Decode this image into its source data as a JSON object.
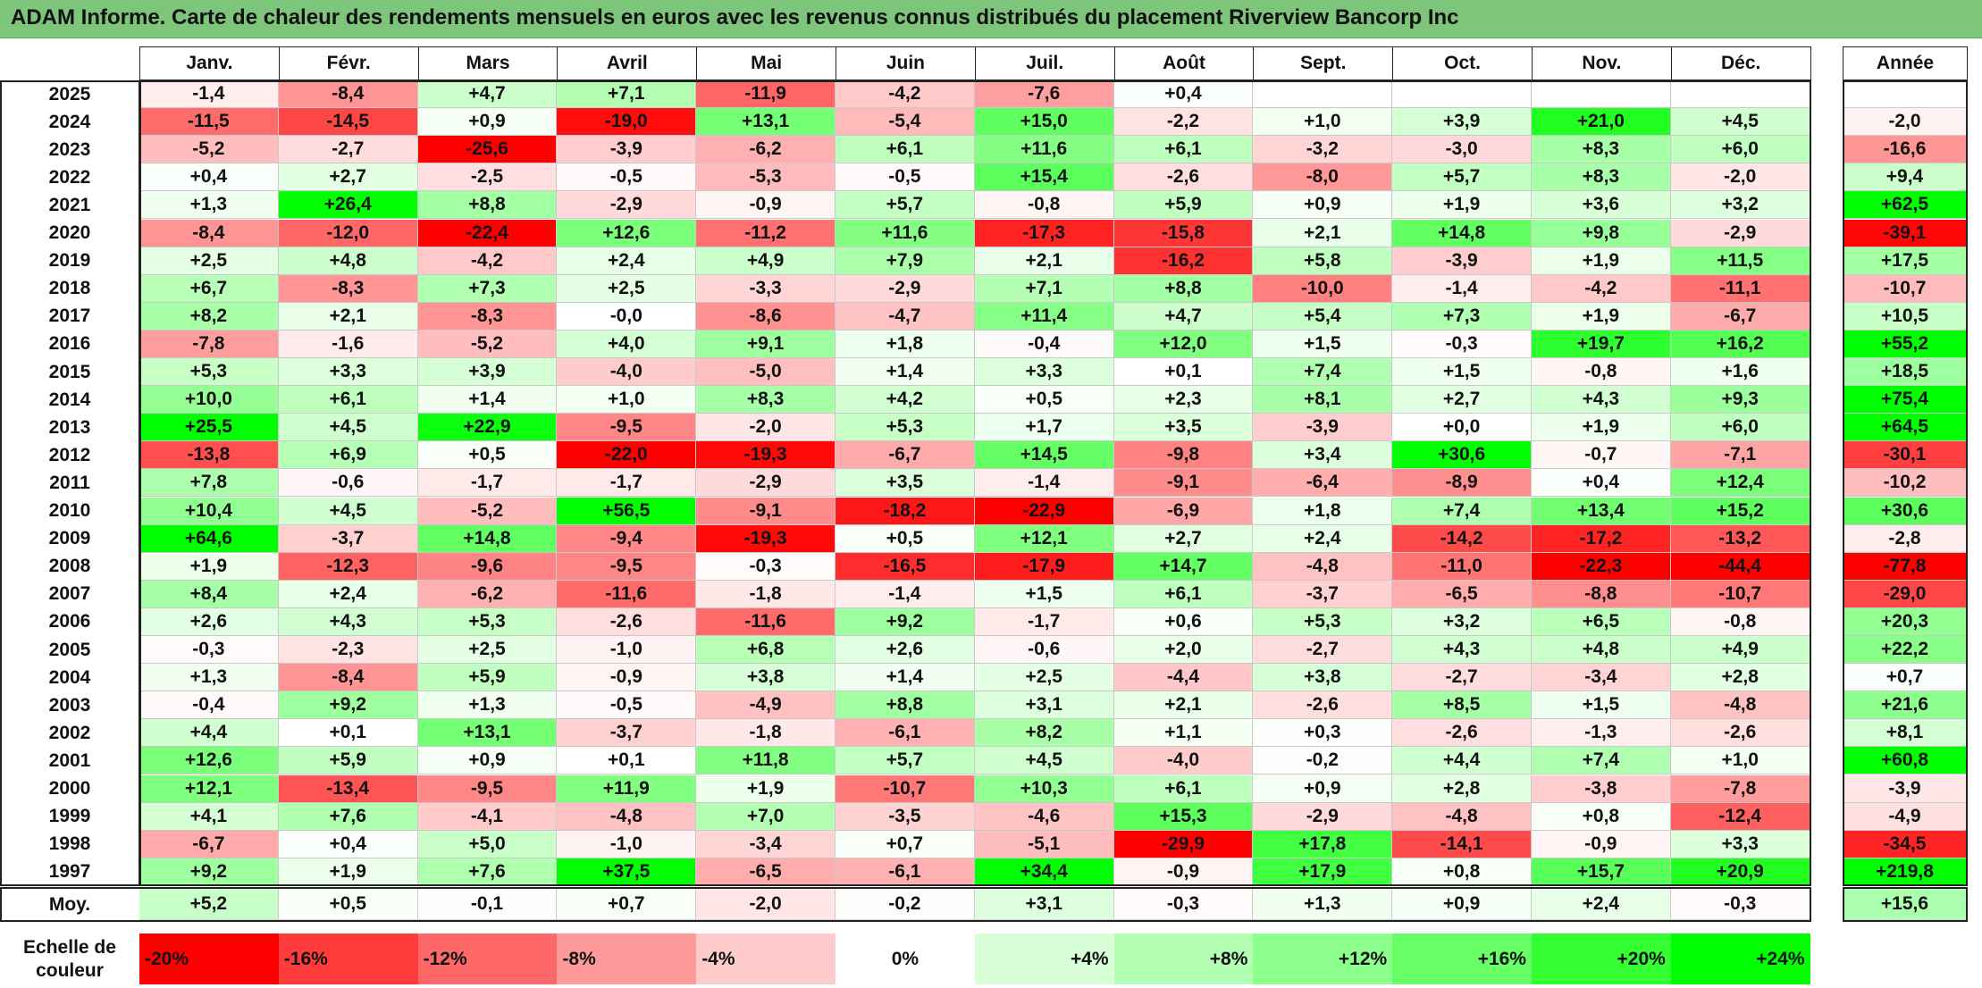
{
  "title": "ADAM Informe. Carte de chaleur des rendements mensuels en euros avec les revenus connus distribués du placement Riverview Bancorp Inc",
  "chart_data": {
    "type": "heatmap",
    "months": [
      "Janv.",
      "Févr.",
      "Mars",
      "Avril",
      "Mai",
      "Juin",
      "Juil.",
      "Août",
      "Sept.",
      "Oct.",
      "Nov.",
      "Déc."
    ],
    "annual_header": "Année",
    "rows": [
      {
        "year": "2025",
        "m": [
          "-1,4",
          "-8,4",
          "+4,7",
          "+7,1",
          "-11,9",
          "-4,2",
          "-7,6",
          "+0,4",
          "",
          "",
          "",
          ""
        ],
        "annual": ""
      },
      {
        "year": "2024",
        "m": [
          "-11,5",
          "-14,5",
          "+0,9",
          "-19,0",
          "+13,1",
          "-5,4",
          "+15,0",
          "-2,2",
          "+1,0",
          "+3,9",
          "+21,0",
          "+4,5"
        ],
        "annual": "-2,0"
      },
      {
        "year": "2023",
        "m": [
          "-5,2",
          "-2,7",
          "-25,6",
          "-3,9",
          "-6,2",
          "+6,1",
          "+11,6",
          "+6,1",
          "-3,2",
          "-3,0",
          "+8,3",
          "+6,0"
        ],
        "annual": "-16,6"
      },
      {
        "year": "2022",
        "m": [
          "+0,4",
          "+2,7",
          "-2,5",
          "-0,5",
          "-5,3",
          "-0,5",
          "+15,4",
          "-2,6",
          "-8,0",
          "+5,7",
          "+8,3",
          "-2,0"
        ],
        "annual": "+9,4"
      },
      {
        "year": "2021",
        "m": [
          "+1,3",
          "+26,4",
          "+8,8",
          "-2,9",
          "-0,9",
          "+5,7",
          "-0,8",
          "+5,9",
          "+0,9",
          "+1,9",
          "+3,6",
          "+3,2"
        ],
        "annual": "+62,5"
      },
      {
        "year": "2020",
        "m": [
          "-8,4",
          "-12,0",
          "-22,4",
          "+12,6",
          "-11,2",
          "+11,6",
          "-17,3",
          "-15,8",
          "+2,1",
          "+14,8",
          "+9,8",
          "-2,9"
        ],
        "annual": "-39,1"
      },
      {
        "year": "2019",
        "m": [
          "+2,5",
          "+4,8",
          "-4,2",
          "+2,4",
          "+4,9",
          "+7,9",
          "+2,1",
          "-16,2",
          "+5,8",
          "-3,9",
          "+1,9",
          "+11,5"
        ],
        "annual": "+17,5"
      },
      {
        "year": "2018",
        "m": [
          "+6,7",
          "-8,3",
          "+7,3",
          "+2,5",
          "-3,3",
          "-2,9",
          "+7,1",
          "+8,8",
          "-10,0",
          "-1,4",
          "-4,2",
          "-11,1"
        ],
        "annual": "-10,7"
      },
      {
        "year": "2017",
        "m": [
          "+8,2",
          "+2,1",
          "-8,3",
          "-0,0",
          "-8,6",
          "-4,7",
          "+11,4",
          "+4,7",
          "+5,4",
          "+7,3",
          "+1,9",
          "-6,7"
        ],
        "annual": "+10,5"
      },
      {
        "year": "2016",
        "m": [
          "-7,8",
          "-1,6",
          "-5,2",
          "+4,0",
          "+9,1",
          "+1,8",
          "-0,4",
          "+12,0",
          "+1,5",
          "-0,3",
          "+19,7",
          "+16,2"
        ],
        "annual": "+55,2"
      },
      {
        "year": "2015",
        "m": [
          "+5,3",
          "+3,3",
          "+3,9",
          "-4,0",
          "-5,0",
          "+1,4",
          "+3,3",
          "+0,1",
          "+7,4",
          "+1,5",
          "-0,8",
          "+1,6"
        ],
        "annual": "+18,5"
      },
      {
        "year": "2014",
        "m": [
          "+10,0",
          "+6,1",
          "+1,4",
          "+1,0",
          "+8,3",
          "+4,2",
          "+0,5",
          "+2,3",
          "+8,1",
          "+2,7",
          "+4,3",
          "+9,3"
        ],
        "annual": "+75,4"
      },
      {
        "year": "2013",
        "m": [
          "+25,5",
          "+4,5",
          "+22,9",
          "-9,5",
          "-2,0",
          "+5,3",
          "+1,7",
          "+3,5",
          "-3,9",
          "+0,0",
          "+1,9",
          "+6,0"
        ],
        "annual": "+64,5"
      },
      {
        "year": "2012",
        "m": [
          "-13,8",
          "+6,9",
          "+0,5",
          "-22,0",
          "-19,3",
          "-6,7",
          "+14,5",
          "-9,8",
          "+3,4",
          "+30,6",
          "-0,7",
          "-7,1"
        ],
        "annual": "-30,1"
      },
      {
        "year": "2011",
        "m": [
          "+7,8",
          "-0,6",
          "-1,7",
          "-1,7",
          "-2,9",
          "+3,5",
          "-1,4",
          "-9,1",
          "-6,4",
          "-8,9",
          "+0,4",
          "+12,4"
        ],
        "annual": "-10,2"
      },
      {
        "year": "2010",
        "m": [
          "+10,4",
          "+4,5",
          "-5,2",
          "+56,5",
          "-9,1",
          "-18,2",
          "-22,9",
          "-6,9",
          "+1,8",
          "+7,4",
          "+13,4",
          "+15,2"
        ],
        "annual": "+30,6"
      },
      {
        "year": "2009",
        "m": [
          "+64,6",
          "-3,7",
          "+14,8",
          "-9,4",
          "-19,3",
          "+0,5",
          "+12,1",
          "+2,7",
          "+2,4",
          "-14,2",
          "-17,2",
          "-13,2"
        ],
        "annual": "-2,8"
      },
      {
        "year": "2008",
        "m": [
          "+1,9",
          "-12,3",
          "-9,6",
          "-9,5",
          "-0,3",
          "-16,5",
          "-17,9",
          "+14,7",
          "-4,8",
          "-11,0",
          "-22,3",
          "-44,4"
        ],
        "annual": "-77,8"
      },
      {
        "year": "2007",
        "m": [
          "+8,4",
          "+2,4",
          "-6,2",
          "-11,6",
          "-1,8",
          "-1,4",
          "+1,5",
          "+6,1",
          "-3,7",
          "-6,5",
          "-8,8",
          "-10,7"
        ],
        "annual": "-29,0"
      },
      {
        "year": "2006",
        "m": [
          "+2,6",
          "+4,3",
          "+5,3",
          "-2,6",
          "-11,6",
          "+9,2",
          "-1,7",
          "+0,6",
          "+5,3",
          "+3,2",
          "+6,5",
          "-0,8"
        ],
        "annual": "+20,3"
      },
      {
        "year": "2005",
        "m": [
          "-0,3",
          "-2,3",
          "+2,5",
          "-1,0",
          "+6,8",
          "+2,6",
          "-0,6",
          "+2,0",
          "-2,7",
          "+4,3",
          "+4,8",
          "+4,9"
        ],
        "annual": "+22,2"
      },
      {
        "year": "2004",
        "m": [
          "+1,3",
          "-8,4",
          "+5,9",
          "-0,9",
          "+3,8",
          "+1,4",
          "+2,5",
          "-4,4",
          "+3,8",
          "-2,7",
          "-3,4",
          "+2,8"
        ],
        "annual": "+0,7"
      },
      {
        "year": "2003",
        "m": [
          "-0,4",
          "+9,2",
          "+1,3",
          "-0,5",
          "-4,9",
          "+8,8",
          "+3,1",
          "+2,1",
          "-2,6",
          "+8,5",
          "+1,5",
          "-4,8"
        ],
        "annual": "+21,6"
      },
      {
        "year": "2002",
        "m": [
          "+4,4",
          "+0,1",
          "+13,1",
          "-3,7",
          "-1,8",
          "-6,1",
          "+8,2",
          "+1,1",
          "+0,3",
          "-2,6",
          "-1,3",
          "-2,6"
        ],
        "annual": "+8,1"
      },
      {
        "year": "2001",
        "m": [
          "+12,6",
          "+5,9",
          "+0,9",
          "+0,1",
          "+11,8",
          "+5,7",
          "+4,5",
          "-4,0",
          "-0,2",
          "+4,4",
          "+7,4",
          "+1,0"
        ],
        "annual": "+60,8"
      },
      {
        "year": "2000",
        "m": [
          "+12,1",
          "-13,4",
          "-9,5",
          "+11,9",
          "+1,9",
          "-10,7",
          "+10,3",
          "+6,1",
          "+0,9",
          "+2,8",
          "-3,8",
          "-7,8"
        ],
        "annual": "-3,9"
      },
      {
        "year": "1999",
        "m": [
          "+4,1",
          "+7,6",
          "-4,1",
          "-4,8",
          "+7,0",
          "-3,5",
          "-4,6",
          "+15,3",
          "-2,9",
          "-4,8",
          "+0,8",
          "-12,4"
        ],
        "annual": "-4,9"
      },
      {
        "year": "1998",
        "m": [
          "-6,7",
          "+0,4",
          "+5,0",
          "-1,0",
          "-3,4",
          "+0,7",
          "-5,1",
          "-29,9",
          "+17,8",
          "-14,1",
          "-0,9",
          "+3,3"
        ],
        "annual": "-34,5"
      },
      {
        "year": "1997",
        "m": [
          "+9,2",
          "+1,9",
          "+7,6",
          "+37,5",
          "-6,5",
          "-6,1",
          "+34,4",
          "-0,9",
          "+17,9",
          "+0,8",
          "+15,7",
          "+20,9"
        ],
        "annual": "+219,8"
      }
    ],
    "average": {
      "label": "Moy.",
      "m": [
        "+5,2",
        "+0,5",
        "-0,1",
        "+0,7",
        "-2,0",
        "-0,2",
        "+3,1",
        "-0,3",
        "+1,3",
        "+0,9",
        "+2,4",
        "-0,3"
      ],
      "annual": "+15,6"
    },
    "scale_label": "Echelle de couleur",
    "scale": [
      {
        "label": "-20%",
        "value": -20,
        "color": "#ff0000"
      },
      {
        "label": "-16%",
        "value": -16,
        "color": "#ff3b3b"
      },
      {
        "label": "-12%",
        "value": -12,
        "color": "#ff6868"
      },
      {
        "label": "-8%",
        "value": -8,
        "color": "#ff9a9a"
      },
      {
        "label": "-4%",
        "value": -4,
        "color": "#ffcccc"
      },
      {
        "label": "0%",
        "value": 0,
        "color": "#ffffff"
      },
      {
        "label": "+4%",
        "value": 4,
        "color": "#d9ffd9"
      },
      {
        "label": "+8%",
        "value": 8,
        "color": "#b3ffb3"
      },
      {
        "label": "+12%",
        "value": 12,
        "color": "#8dff8d"
      },
      {
        "label": "+16%",
        "value": 16,
        "color": "#66ff66"
      },
      {
        "label": "+20%",
        "value": 20,
        "color": "#33ff33"
      },
      {
        "label": "+24%",
        "value": 24,
        "color": "#00ff00"
      }
    ]
  }
}
